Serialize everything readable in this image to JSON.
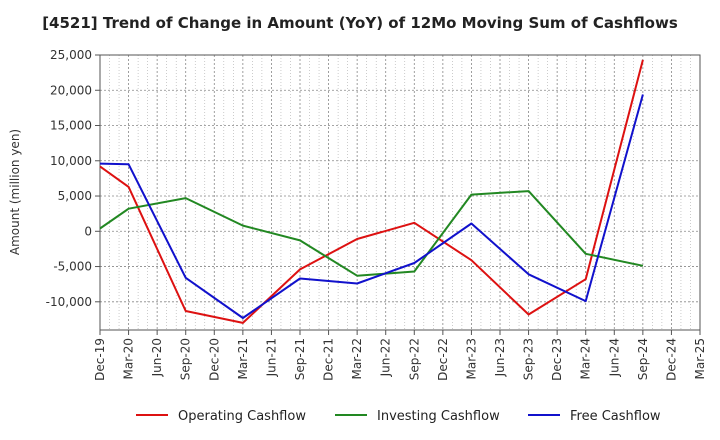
{
  "chart_data": {
    "type": "line",
    "title": "[4521]  Trend of Change in Amount (YoY) of 12Mo Moving Sum of Cashflows",
    "xlabel": "",
    "ylabel": "Amount (million yen)",
    "ylim": [
      -14000,
      25000
    ],
    "yticks": [
      25000,
      20000,
      15000,
      10000,
      5000,
      0,
      -5000,
      -10000
    ],
    "ytick_labels": [
      "25,000",
      "20,000",
      "15,000",
      "10,000",
      "5,000",
      "0",
      "-5,000",
      "-10,000"
    ],
    "x": [
      "Dec-19",
      "Mar-20",
      "Jun-20",
      "Sep-20",
      "Dec-20",
      "Mar-21",
      "Jun-21",
      "Sep-21",
      "Dec-21",
      "Mar-22",
      "Jun-22",
      "Sep-22",
      "Dec-22",
      "Mar-23",
      "Jun-23",
      "Sep-23",
      "Dec-23",
      "Mar-24",
      "Jun-24",
      "Sep-24",
      "Dec-24",
      "Mar-25"
    ],
    "xtick_labels": [
      "Dec-19",
      "Mar-20",
      "Jun-20",
      "Sep-20",
      "Dec-20",
      "Mar-21",
      "Jun-21",
      "Sep-21",
      "Dec-21",
      "Mar-22",
      "Jun-22",
      "Sep-22",
      "Dec-22",
      "Mar-23",
      "Jun-23",
      "Sep-23",
      "Dec-23",
      "Mar-24",
      "Jun-24",
      "Sep-24",
      "Dec-24",
      "Mar-25"
    ],
    "grid": true,
    "legend_position": "bottom",
    "series": [
      {
        "name": "Operating Cashflow",
        "color": "#dd1111",
        "values": [
          9200,
          6300,
          null,
          -11300,
          null,
          -13000,
          null,
          -5400,
          null,
          -1100,
          null,
          1200,
          null,
          -4100,
          null,
          -11800,
          null,
          -6800,
          null,
          24300,
          null,
          null
        ]
      },
      {
        "name": "Investing Cashflow",
        "color": "#228822",
        "values": [
          400,
          3200,
          null,
          4700,
          null,
          800,
          null,
          -1300,
          null,
          -6300,
          null,
          -5700,
          null,
          5200,
          null,
          5700,
          null,
          -3200,
          null,
          -4900,
          null,
          null
        ]
      },
      {
        "name": "Free Cashflow",
        "color": "#1111cc",
        "values": [
          9600,
          9500,
          null,
          -6600,
          null,
          -12300,
          null,
          -6700,
          null,
          -7400,
          null,
          -4500,
          null,
          1100,
          null,
          -6100,
          null,
          -9900,
          null,
          19400,
          null,
          null
        ]
      }
    ]
  }
}
